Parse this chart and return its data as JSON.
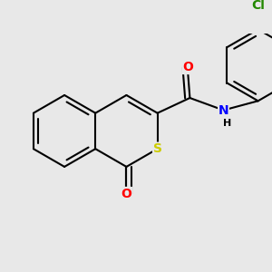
{
  "background_color": "#e8e8e8",
  "atom_colors": {
    "O": "#ff0000",
    "S": "#cccc00",
    "N": "#0000ff",
    "Cl": "#228800",
    "C": "#000000",
    "H": "#000000"
  },
  "bond_color": "#000000",
  "bond_width": 1.5,
  "font_size_atoms": 10,
  "font_size_small": 8,
  "xlim": [
    -2.5,
    3.2
  ],
  "ylim": [
    -2.2,
    2.2
  ]
}
